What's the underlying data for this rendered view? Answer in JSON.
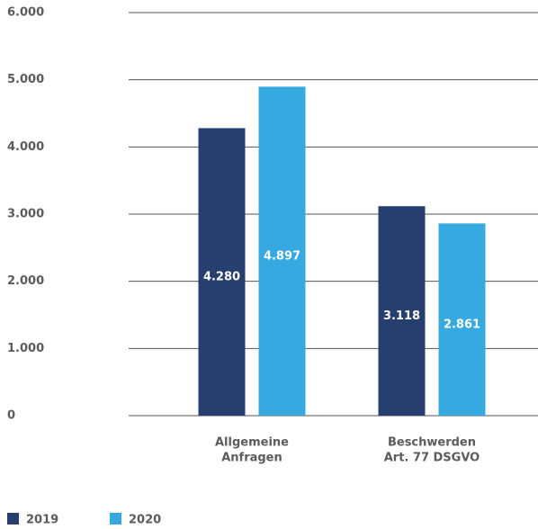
{
  "chart_data": {
    "type": "bar",
    "categories": [
      [
        "Allgemeine",
        "Anfragen"
      ],
      [
        "Beschwerden",
        "Art. 77 DSGVO"
      ]
    ],
    "series": [
      {
        "name": "2019",
        "color": "#263f6e",
        "values": [
          4280,
          3118
        ],
        "value_labels": [
          "4.280",
          "3.118"
        ]
      },
      {
        "name": "2020",
        "color": "#36a9e1",
        "values": [
          4897,
          2861
        ],
        "value_labels": [
          "4.897",
          "2.861"
        ]
      }
    ],
    "ylim": [
      0,
      6000
    ],
    "yticks": [
      0,
      {
        "value": 1000,
        "label": "1.000"
      },
      {
        "value": 2000,
        "label": "2.000"
      },
      {
        "value": 3000,
        "label": "3.000"
      },
      {
        "value": 4000,
        "label": "4.000"
      },
      {
        "value": 5000,
        "label": "5.000"
      },
      {
        "value": 6000,
        "label": "6.000"
      }
    ],
    "grid": true
  }
}
